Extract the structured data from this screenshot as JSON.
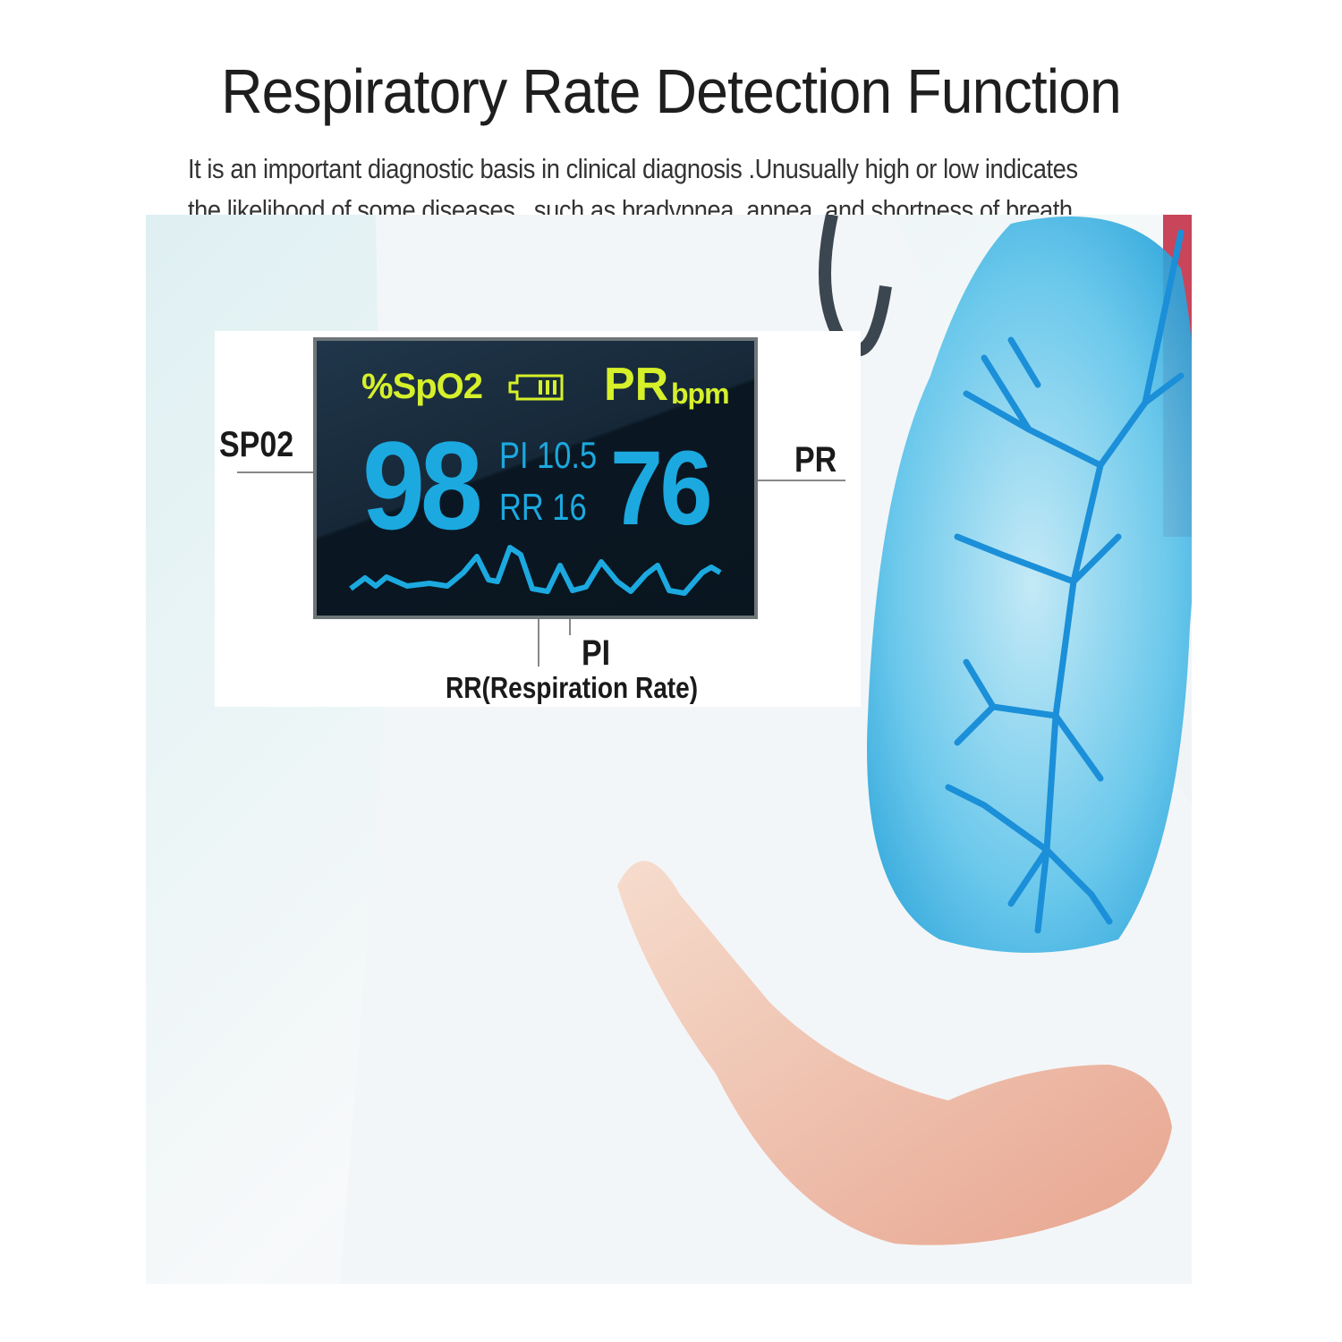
{
  "title": "Respiratory Rate Detection Function",
  "subtitle_lines": [
    "It is an important diagnostic basis in clinical diagnosis .Unusually high or low indicates",
    "the likelihood of some diseases , such as bradypnea, apnea, and shortness of breath ."
  ],
  "display": {
    "spo2_header": "%SpO2",
    "pr_header": "PR",
    "pr_unit": "bpm",
    "spo2_value": "98",
    "pi_text": "PI 10.5",
    "rr_text": "RR 16",
    "pr_value": "76",
    "battery_icon": "battery-full-icon",
    "colors": {
      "header": "#d6f02a",
      "value": "#1ba9e0",
      "screen": "#0a1722"
    }
  },
  "callouts": {
    "spo2": "SP02",
    "pr": "PR",
    "pi": "PI",
    "rr": "RR(Respiration Rate)"
  }
}
